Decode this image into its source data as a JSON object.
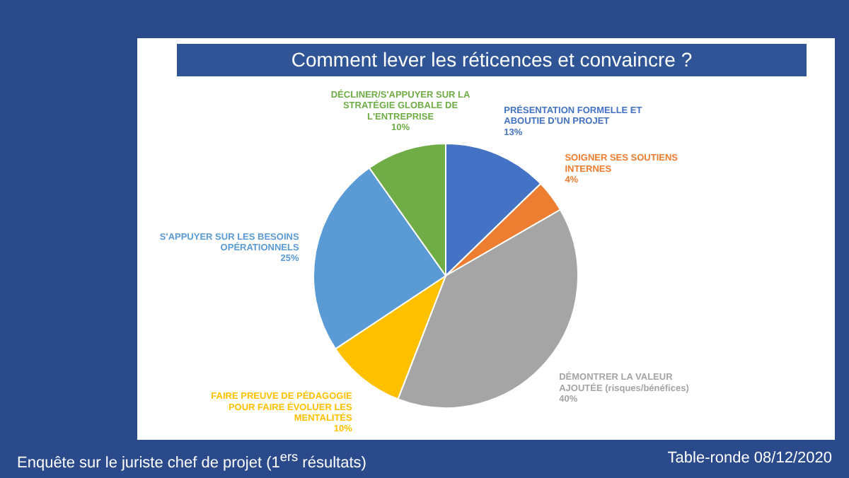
{
  "chart_data": {
    "type": "pie",
    "title": "Comment lever les réticences et convaincre ?",
    "categories": [
      "PRÉSENTATION FORMELLE ET ABOUTIE D'UN PROJET",
      "SOIGNER SES SOUTIENS INTERNES",
      "DÉMONTRER LA VALEUR AJOUTÉE (risques/bénéfices)",
      "FAIRE PREUVE DE PÉDAGOGIE POUR FAIRE ÉVOLUER LES MENTALITÉS",
      "S'APPUYER SUR LES BESOINS OPÉRATIONNELS",
      "DÉCLINER/S'APPUYER SUR LA STRATÉGIE GLOBALE DE L'ENTREPRISE"
    ],
    "values": [
      13,
      4,
      40,
      10,
      25,
      10
    ],
    "colors": [
      "#4472c4",
      "#ed7d31",
      "#a5a5a5",
      "#ffc000",
      "#5b9bd5",
      "#70ad47"
    ],
    "value_labels": [
      "13%",
      "4%",
      "40%",
      "10%",
      "25%",
      "10%"
    ],
    "legend": false,
    "annotations": [
      "Enquête sur le juriste chef de projet (1$^{ers}$ résultats)",
      "Table-ronde 08/12/2020"
    ]
  }
}
